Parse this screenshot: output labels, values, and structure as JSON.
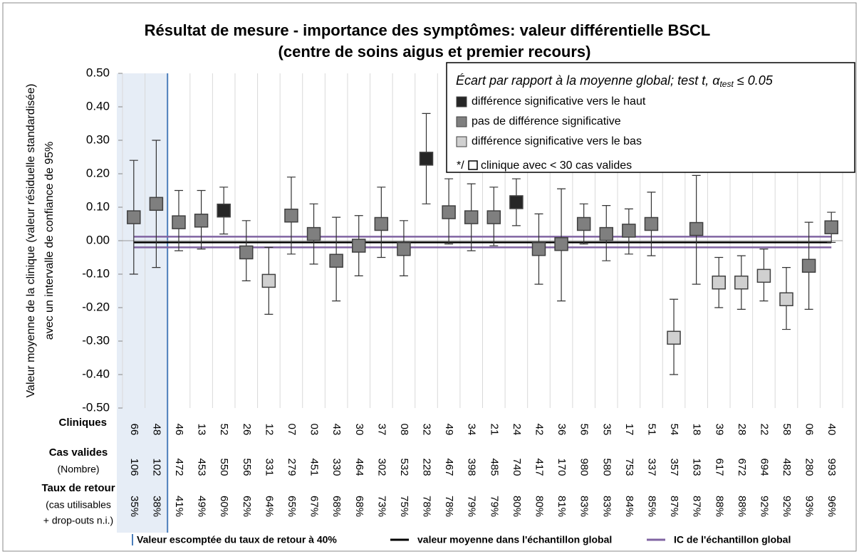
{
  "chart_data": {
    "type": "errorbar",
    "title": [
      "Résultat de mesure - importance des symptômes: valeur différentielle BSCL",
      "(centre de soins aigus et premier recours)"
    ],
    "y_label": [
      "Valeur moyenne de la clinique (valeur résiduelle standardisée)",
      "avec un intervalle de confiance de 95%"
    ],
    "ylim": [
      -0.5,
      0.5
    ],
    "yticks": [
      {
        "value": 0.5,
        "label": "0.50"
      },
      {
        "value": 0.4,
        "label": "0.40"
      },
      {
        "value": 0.3,
        "label": "0.30"
      },
      {
        "value": 0.2,
        "label": "0.20"
      },
      {
        "value": 0.1,
        "label": "0.10"
      },
      {
        "value": 0,
        "label": "0.00"
      },
      {
        "value": -0.1,
        "label": "-0.10"
      },
      {
        "value": -0.2,
        "label": "-0.20"
      },
      {
        "value": -0.3,
        "label": "-0.30"
      },
      {
        "value": -0.4,
        "label": "-0.40"
      },
      {
        "value": -0.5,
        "label": "-0.50"
      }
    ],
    "categories": [
      "66",
      "48",
      "46",
      "13",
      "52",
      "26",
      "12",
      "07",
      "03",
      "43",
      "30",
      "37",
      "08",
      "32",
      "49",
      "34",
      "21",
      "24",
      "42",
      "36",
      "56",
      "35",
      "17",
      "51",
      "54",
      "18",
      "39",
      "28",
      "22",
      "58",
      "06",
      "40"
    ],
    "series": [
      {
        "values": [
          0.07,
          0.11,
          0.055,
          0.06,
          0.09,
          -0.035,
          -0.12,
          0.075,
          0.02,
          -0.06,
          -0.015,
          0.05,
          -0.025,
          0.245,
          0.085,
          0.07,
          0.07,
          0.115,
          -0.025,
          -0.01,
          0.05,
          0.02,
          0.03,
          0.05,
          -0.29,
          0.035,
          -0.125,
          -0.125,
          -0.105,
          -0.175,
          -0.075,
          0.04
        ],
        "ci_low": [
          -0.1,
          -0.08,
          -0.03,
          -0.025,
          0.02,
          -0.12,
          -0.22,
          -0.04,
          -0.07,
          -0.18,
          -0.105,
          -0.05,
          -0.105,
          0.11,
          -0.01,
          -0.03,
          -0.015,
          0.045,
          -0.13,
          -0.18,
          -0.01,
          -0.06,
          -0.04,
          -0.045,
          -0.4,
          -0.13,
          -0.2,
          -0.205,
          -0.18,
          -0.265,
          -0.205,
          -0.005
        ],
        "ci_high": [
          0.24,
          0.3,
          0.15,
          0.15,
          0.16,
          0.06,
          -0.02,
          0.19,
          0.11,
          0.07,
          0.075,
          0.16,
          0.06,
          0.38,
          0.185,
          0.17,
          0.16,
          0.185,
          0.08,
          0.155,
          0.11,
          0.105,
          0.095,
          0.145,
          -0.175,
          0.195,
          -0.05,
          -0.045,
          -0.025,
          -0.08,
          0.055,
          0.085
        ],
        "colors": [
          "#7f7f7f",
          "#7f7f7f",
          "#7f7f7f",
          "#7f7f7f",
          "#262626",
          "#7f7f7f",
          "#d0d0d0",
          "#7f7f7f",
          "#7f7f7f",
          "#7f7f7f",
          "#7f7f7f",
          "#7f7f7f",
          "#7f7f7f",
          "#262626",
          "#7f7f7f",
          "#7f7f7f",
          "#7f7f7f",
          "#262626",
          "#7f7f7f",
          "#7f7f7f",
          "#7f7f7f",
          "#7f7f7f",
          "#7f7f7f",
          "#7f7f7f",
          "#d0d0d0",
          "#7f7f7f",
          "#d0d0d0",
          "#d0d0d0",
          "#d0d0d0",
          "#d0d0d0",
          "#7f7f7f",
          "#40"
        ]
      }
    ],
    "mean": -0.005,
    "mean_ci": [
      -0.02,
      0.012
    ],
    "table": {
      "headers": [
        [
          "Cliniques"
        ],
        [
          "Cas valides",
          "(Nombre)"
        ],
        [
          "Taux de retour",
          "(cas utilisables",
          "+ drop-outs n.i.)"
        ]
      ],
      "cases": [
        "106",
        "102",
        "472",
        "453",
        "550",
        "556",
        "331",
        "279",
        "451",
        "330",
        "464",
        "302",
        "532",
        "228",
        "467",
        "398",
        "485",
        "740",
        "417",
        "170",
        "980",
        "580",
        "753",
        "337",
        "357",
        "163",
        "617",
        "672",
        "694",
        "482",
        "280",
        "993"
      ],
      "rates": [
        "35%",
        "38%",
        "41%",
        "49%",
        "60%",
        "62%",
        "64%",
        "65%",
        "67%",
        "68%",
        "68%",
        "73%",
        "75%",
        "78%",
        "78%",
        "79%",
        "79%",
        "80%",
        "80%",
        "81%",
        "83%",
        "83%",
        "84%",
        "85%",
        "87%",
        "87%",
        "88%",
        "88%",
        "92%",
        "92%",
        "93%",
        "96%"
      ]
    },
    "legend": {
      "title": [
        "Écart par rapport à la moyenne global;  test t, α",
        "test",
        " ≤ 0.05"
      ],
      "entries": [
        {
          "name": "différence significative vers le haut",
          "color": "#262626"
        },
        {
          "name": "pas de différence significative",
          "color": "#7f7f7f"
        },
        {
          "name": "différence significative vers le bas",
          "color": "#d0d0d0"
        }
      ],
      "small": [
        "*/",
        "clinique avec < 30 cas valides"
      ]
    },
    "bottom_legend": [
      {
        "name": "Valeur escomptée du taux de retour à 40%",
        "color": "#4a7ebb"
      },
      {
        "name": "valeur moyenne dans l'échantillon global",
        "color": "#000000"
      },
      {
        "name": "IC de l'échantillon global",
        "color": "#8064a2"
      }
    ]
  }
}
